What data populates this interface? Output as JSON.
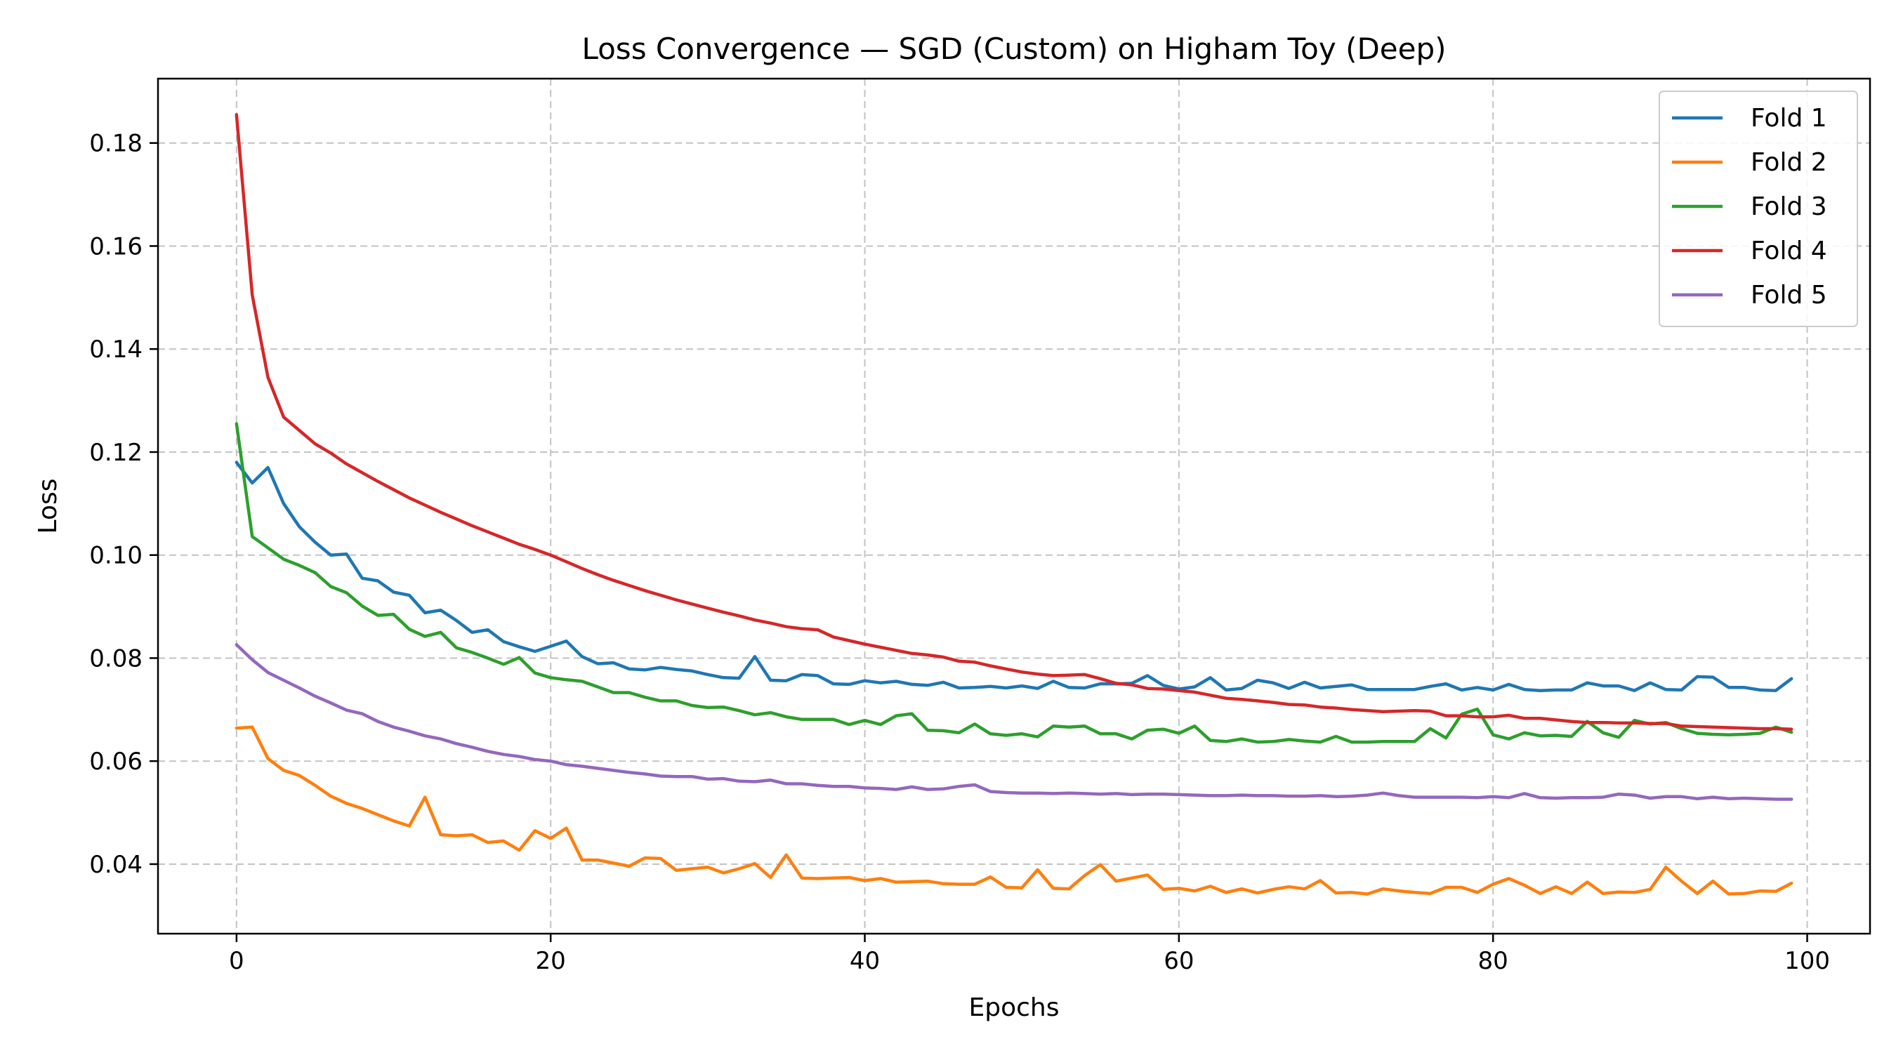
{
  "chart_data": {
    "type": "line",
    "title": "Loss Convergence — SGD (Custom) on Higham Toy (Deep)",
    "xlabel": "Epochs",
    "ylabel": "Loss",
    "xlim": [
      -5,
      104
    ],
    "ylim": [
      0.0265,
      0.1925
    ],
    "xticks": [
      0,
      20,
      40,
      60,
      80,
      100
    ],
    "yticks": [
      0.04,
      0.06,
      0.08,
      0.1,
      0.12,
      0.14,
      0.16,
      0.18
    ],
    "ytick_labels": [
      "0.04",
      "0.06",
      "0.08",
      "0.10",
      "0.12",
      "0.14",
      "0.16",
      "0.18"
    ],
    "grid": true,
    "legend_position": "top-right",
    "series": [
      {
        "name": "Fold 1",
        "color": "#1f77b4",
        "values": [
          0.118,
          0.114,
          0.117,
          0.11,
          0.1055,
          0.1025,
          0.1,
          0.1002,
          0.0955,
          0.095,
          0.0928,
          0.0922,
          0.0888,
          0.0893,
          0.0873,
          0.085,
          0.0855,
          0.0832,
          0.0822,
          0.0813,
          0.0823,
          0.0833,
          0.0803,
          0.0789,
          0.0791,
          0.0779,
          0.0777,
          0.0782,
          0.0778,
          0.0775,
          0.0768,
          0.0762,
          0.0761,
          0.0803,
          0.0757,
          0.0756,
          0.0768,
          0.0766,
          0.075,
          0.0749,
          0.0756,
          0.0752,
          0.0755,
          0.0749,
          0.0747,
          0.0753,
          0.0742,
          0.0743,
          0.0745,
          0.0742,
          0.0746,
          0.0741,
          0.0755,
          0.0743,
          0.0742,
          0.075,
          0.075,
          0.0751,
          0.0766,
          0.0747,
          0.074,
          0.0744,
          0.0762,
          0.0738,
          0.0741,
          0.0757,
          0.0752,
          0.0741,
          0.0753,
          0.0742,
          0.0745,
          0.0748,
          0.0739,
          0.0739,
          0.0739,
          0.0739,
          0.0745,
          0.075,
          0.0738,
          0.0743,
          0.0738,
          0.0749,
          0.0739,
          0.0737,
          0.0738,
          0.0738,
          0.0752,
          0.0746,
          0.0746,
          0.0737,
          0.0752,
          0.0739,
          0.0738,
          0.0764,
          0.0763,
          0.0743,
          0.0743,
          0.0738,
          0.0737,
          0.076
        ]
      },
      {
        "name": "Fold 2",
        "color": "#ff7f0e",
        "values": [
          0.0664,
          0.0666,
          0.0605,
          0.0582,
          0.0572,
          0.0553,
          0.0532,
          0.0518,
          0.0508,
          0.0496,
          0.0484,
          0.0474,
          0.053,
          0.0457,
          0.0455,
          0.0457,
          0.0442,
          0.0445,
          0.0427,
          0.0465,
          0.045,
          0.047,
          0.0408,
          0.0408,
          0.0402,
          0.0396,
          0.0412,
          0.0411,
          0.0388,
          0.0391,
          0.0394,
          0.0383,
          0.0391,
          0.0401,
          0.0374,
          0.0418,
          0.0373,
          0.0372,
          0.0373,
          0.0374,
          0.0368,
          0.0372,
          0.0365,
          0.0366,
          0.0367,
          0.0362,
          0.0361,
          0.0361,
          0.0375,
          0.0355,
          0.0354,
          0.0389,
          0.0353,
          0.0352,
          0.0378,
          0.0399,
          0.0367,
          0.0373,
          0.0379,
          0.0351,
          0.0353,
          0.0348,
          0.0357,
          0.0345,
          0.0352,
          0.0344,
          0.0351,
          0.0356,
          0.0352,
          0.0368,
          0.0344,
          0.0345,
          0.0342,
          0.0352,
          0.0348,
          0.0345,
          0.0343,
          0.0355,
          0.0355,
          0.0345,
          0.0361,
          0.0372,
          0.0359,
          0.0343,
          0.0356,
          0.0343,
          0.0365,
          0.0343,
          0.0346,
          0.0345,
          0.0351,
          0.0394,
          0.0367,
          0.0343,
          0.0367,
          0.0342,
          0.0343,
          0.0348,
          0.0347,
          0.0363
        ]
      },
      {
        "name": "Fold 3",
        "color": "#2ca02c",
        "values": [
          0.1255,
          0.1036,
          0.1014,
          0.0992,
          0.098,
          0.0966,
          0.0939,
          0.0927,
          0.0901,
          0.0883,
          0.0885,
          0.0856,
          0.0842,
          0.085,
          0.082,
          0.0811,
          0.08,
          0.0788,
          0.0801,
          0.0771,
          0.0762,
          0.0758,
          0.0755,
          0.0744,
          0.0733,
          0.0733,
          0.0724,
          0.0717,
          0.0717,
          0.0708,
          0.0704,
          0.0705,
          0.0698,
          0.069,
          0.0694,
          0.0686,
          0.0681,
          0.0681,
          0.0681,
          0.0671,
          0.0679,
          0.0671,
          0.0688,
          0.0692,
          0.066,
          0.0659,
          0.0655,
          0.0672,
          0.0653,
          0.065,
          0.0653,
          0.0647,
          0.0668,
          0.0666,
          0.0668,
          0.0653,
          0.0653,
          0.0643,
          0.066,
          0.0662,
          0.0654,
          0.0668,
          0.064,
          0.0638,
          0.0643,
          0.0637,
          0.0638,
          0.0642,
          0.0639,
          0.0637,
          0.0648,
          0.0637,
          0.0637,
          0.0638,
          0.0638,
          0.0638,
          0.0663,
          0.0645,
          0.0691,
          0.0701,
          0.0651,
          0.0643,
          0.0655,
          0.0649,
          0.065,
          0.0648,
          0.0677,
          0.0655,
          0.0646,
          0.0679,
          0.0672,
          0.0675,
          0.0663,
          0.0654,
          0.0652,
          0.0651,
          0.0652,
          0.0654,
          0.0666,
          0.0656
        ]
      },
      {
        "name": "Fold 4",
        "color": "#d62728",
        "values": [
          0.1855,
          0.1505,
          0.1345,
          0.1268,
          0.1242,
          0.1216,
          0.1198,
          0.1177,
          0.116,
          0.1143,
          0.1127,
          0.1111,
          0.1097,
          0.1083,
          0.107,
          0.1057,
          0.1045,
          0.1033,
          0.1021,
          0.1011,
          0.1,
          0.0987,
          0.0974,
          0.0962,
          0.0951,
          0.0941,
          0.0931,
          0.0922,
          0.0913,
          0.0905,
          0.0897,
          0.0889,
          0.0882,
          0.0874,
          0.0868,
          0.0861,
          0.0857,
          0.0855,
          0.0841,
          0.0834,
          0.0827,
          0.0821,
          0.0815,
          0.0809,
          0.0806,
          0.0802,
          0.0794,
          0.0792,
          0.0785,
          0.0779,
          0.0773,
          0.0769,
          0.0766,
          0.0767,
          0.0768,
          0.076,
          0.0751,
          0.0748,
          0.0741,
          0.074,
          0.0737,
          0.0734,
          0.0728,
          0.0722,
          0.072,
          0.0717,
          0.0714,
          0.071,
          0.0709,
          0.0705,
          0.0703,
          0.07,
          0.0698,
          0.0696,
          0.0697,
          0.0698,
          0.0697,
          0.0688,
          0.0688,
          0.0686,
          0.0686,
          0.0689,
          0.0683,
          0.0683,
          0.068,
          0.0677,
          0.0675,
          0.0675,
          0.0674,
          0.0674,
          0.0673,
          0.0673,
          0.0668,
          0.0667,
          0.0666,
          0.0665,
          0.0664,
          0.0663,
          0.0663,
          0.0662
        ]
      },
      {
        "name": "Fold 5",
        "color": "#9467bd",
        "values": [
          0.0826,
          0.0797,
          0.0772,
          0.0757,
          0.0742,
          0.0726,
          0.0713,
          0.0699,
          0.0692,
          0.0677,
          0.0666,
          0.0658,
          0.0649,
          0.0643,
          0.0634,
          0.0627,
          0.0619,
          0.0613,
          0.0609,
          0.0603,
          0.06,
          0.0593,
          0.059,
          0.0586,
          0.0582,
          0.0578,
          0.0575,
          0.0571,
          0.057,
          0.057,
          0.0565,
          0.0566,
          0.0561,
          0.056,
          0.0563,
          0.0556,
          0.0556,
          0.0553,
          0.0551,
          0.0551,
          0.0548,
          0.0547,
          0.0545,
          0.055,
          0.0545,
          0.0546,
          0.0551,
          0.0554,
          0.0541,
          0.0539,
          0.0538,
          0.0538,
          0.0537,
          0.0538,
          0.0537,
          0.0536,
          0.0537,
          0.0535,
          0.0536,
          0.0536,
          0.0535,
          0.0534,
          0.0533,
          0.0533,
          0.0534,
          0.0533,
          0.0533,
          0.0532,
          0.0532,
          0.0533,
          0.0531,
          0.0532,
          0.0534,
          0.0538,
          0.0533,
          0.053,
          0.053,
          0.053,
          0.053,
          0.0529,
          0.0531,
          0.0529,
          0.0537,
          0.0529,
          0.0528,
          0.0529,
          0.0529,
          0.053,
          0.0536,
          0.0534,
          0.0528,
          0.0531,
          0.0531,
          0.0527,
          0.053,
          0.0527,
          0.0528,
          0.0527,
          0.0526,
          0.0526
        ]
      }
    ]
  }
}
